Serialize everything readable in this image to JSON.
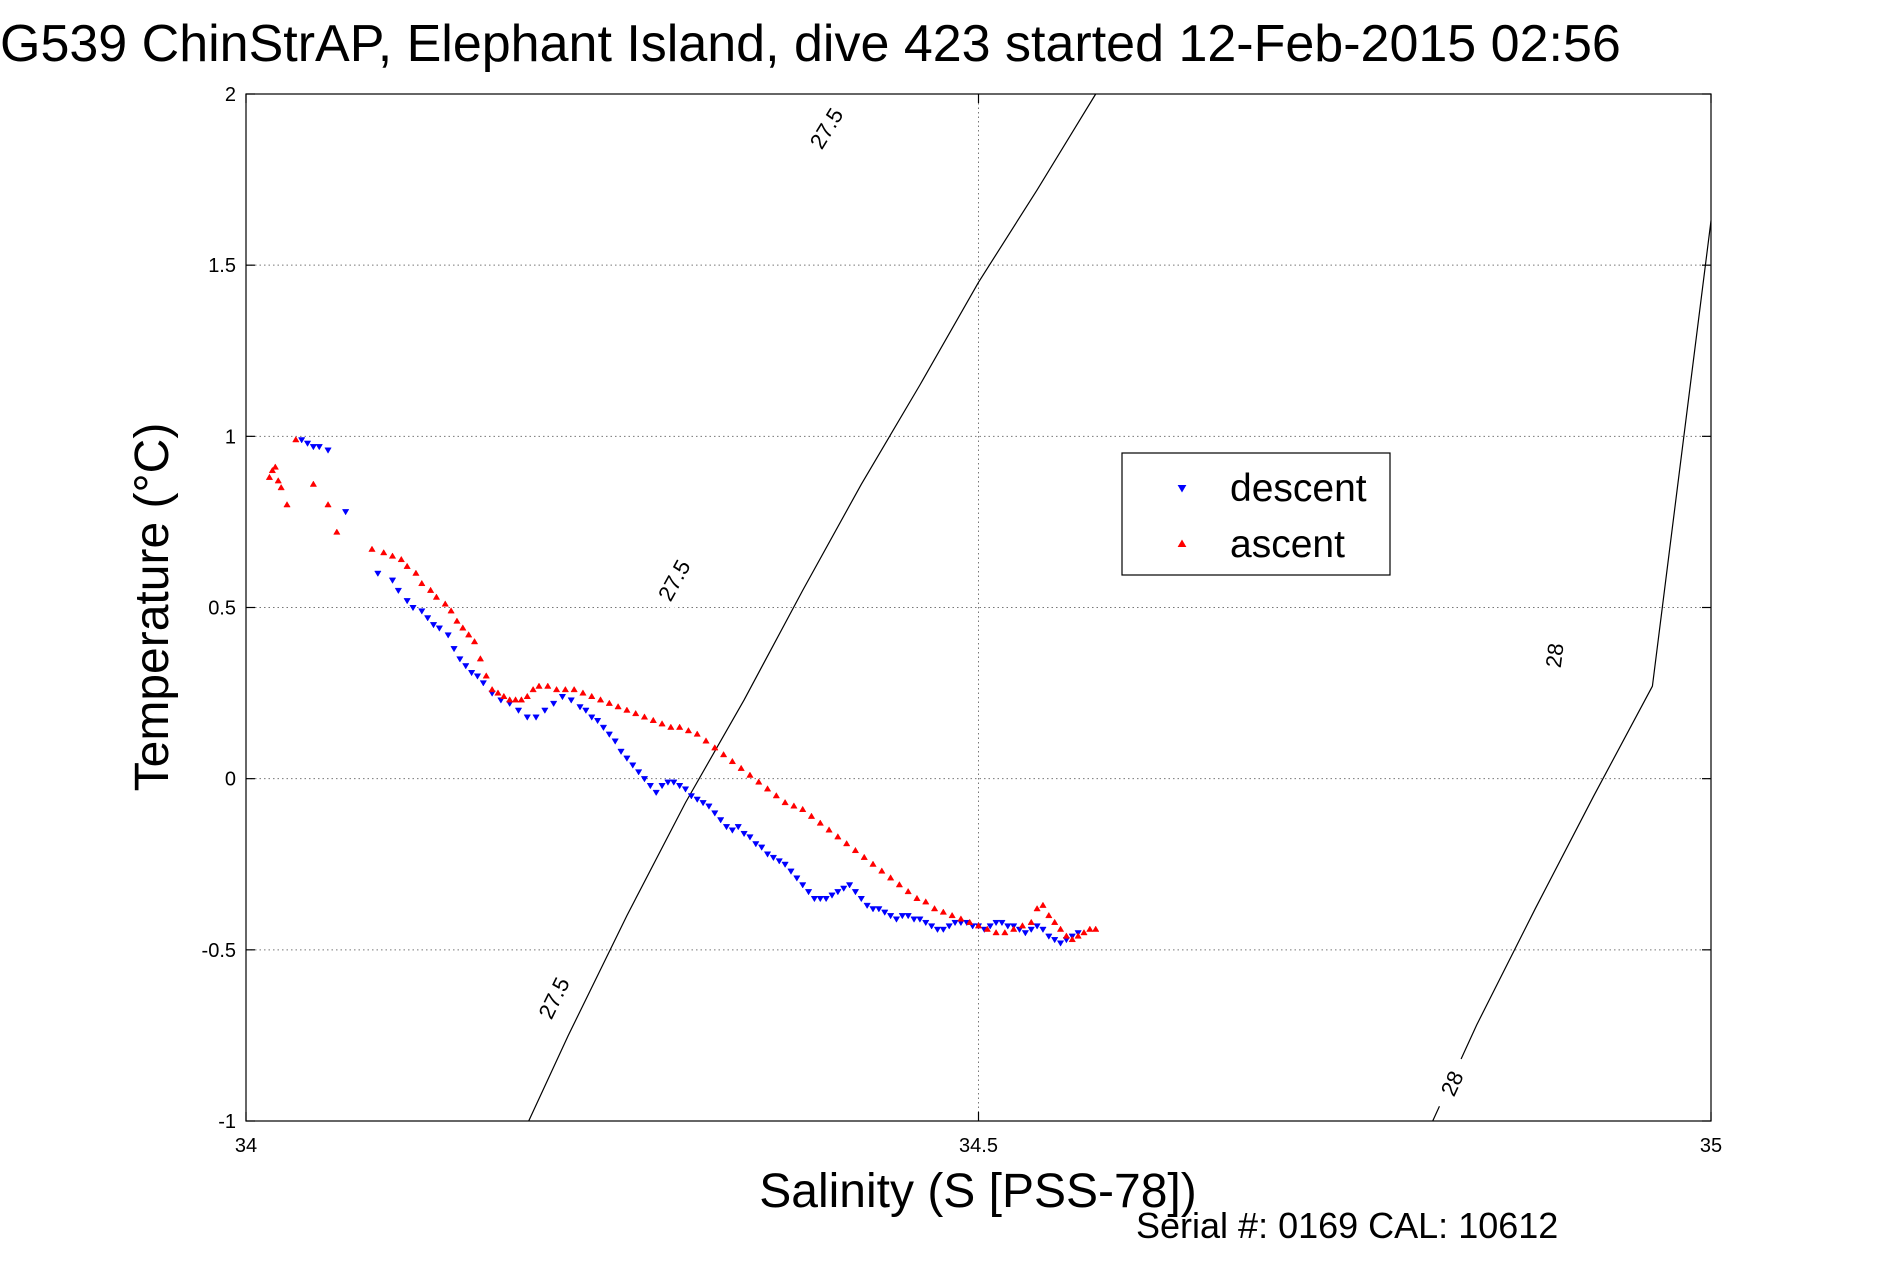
{
  "chart_data": {
    "type": "scatter",
    "title": "G539 ChinStrAP, Elephant Island, dive 423 started 12-Feb-2015 02:56",
    "xlabel": "Salinity (S [PSS-78])",
    "ylabel": "Temperature (°C)",
    "xlim": [
      34,
      35
    ],
    "ylim": [
      -1,
      2
    ],
    "xticks": [
      34,
      34.5,
      35
    ],
    "xtick_labels": [
      "34",
      "34.5",
      "35"
    ],
    "yticks": [
      -1,
      -0.5,
      0,
      0.5,
      1,
      1.5,
      2
    ],
    "ytick_labels": [
      "-1",
      "-0.5",
      "0",
      "0.5",
      "1",
      "1.5",
      "2"
    ],
    "grid": true,
    "grid_style": "dotted",
    "legend_position": "upper-right-center",
    "footer": "Serial #: 0169 CAL: 10612",
    "density_contours": [
      {
        "label": "27.5",
        "points": [
          [
            34.193,
            -1.0
          ],
          [
            34.22,
            -0.75
          ],
          [
            34.26,
            -0.4
          ],
          [
            34.3,
            -0.07
          ],
          [
            34.34,
            0.23
          ],
          [
            34.38,
            0.55
          ],
          [
            34.42,
            0.86
          ],
          [
            34.46,
            1.15
          ],
          [
            34.5,
            1.45
          ],
          [
            34.54,
            1.72
          ],
          [
            34.58,
            2.0
          ]
        ],
        "label_positions": [
          [
            34.21,
            -0.64
          ],
          [
            34.292,
            0.58
          ],
          [
            34.396,
            1.9
          ]
        ]
      },
      {
        "label": "28",
        "points": [
          [
            34.81,
            -1.0
          ],
          [
            34.84,
            -0.72
          ],
          [
            34.88,
            -0.38
          ],
          [
            34.92,
            -0.05
          ],
          [
            34.96,
            0.27
          ],
          [
            35.0,
            1.63
          ]
        ],
        "label_positions": [
          [
            34.823,
            -0.89
          ],
          [
            34.893,
            0.36
          ]
        ]
      }
    ],
    "series": [
      {
        "name": "descent",
        "color": "#0000ff",
        "marker": "triangle-down",
        "x": [
          34.038,
          34.042,
          34.046,
          34.05,
          34.056,
          34.068,
          34.09,
          34.1,
          34.104,
          34.11,
          34.114,
          34.12,
          34.124,
          34.128,
          34.132,
          34.138,
          34.142,
          34.146,
          34.15,
          34.154,
          34.158,
          34.162,
          34.168,
          34.174,
          34.18,
          34.186,
          34.192,
          34.198,
          34.204,
          34.21,
          34.216,
          34.222,
          34.228,
          34.232,
          34.236,
          34.24,
          34.244,
          34.248,
          34.252,
          34.256,
          34.26,
          34.264,
          34.268,
          34.272,
          34.276,
          34.28,
          34.284,
          34.288,
          34.292,
          34.296,
          34.3,
          34.304,
          34.308,
          34.312,
          34.316,
          34.32,
          34.324,
          34.328,
          34.332,
          34.336,
          34.34,
          34.344,
          34.348,
          34.352,
          34.356,
          34.36,
          34.364,
          34.368,
          34.372,
          34.376,
          34.38,
          34.384,
          34.388,
          34.392,
          34.396,
          34.4,
          34.404,
          34.408,
          34.412,
          34.416,
          34.42,
          34.424,
          34.428,
          34.432,
          34.436,
          34.44,
          34.444,
          34.448,
          34.452,
          34.456,
          34.46,
          34.464,
          34.468,
          34.472,
          34.476,
          34.48,
          34.484,
          34.488,
          34.492,
          34.496,
          34.5,
          34.504,
          34.508,
          34.512,
          34.516,
          34.52,
          34.524,
          34.528,
          34.532,
          34.536,
          34.54,
          34.544,
          34.548,
          34.552,
          34.556,
          34.56,
          34.564,
          34.568
        ],
        "y": [
          0.99,
          0.98,
          0.97,
          0.97,
          0.96,
          0.78,
          0.6,
          0.58,
          0.55,
          0.52,
          0.5,
          0.49,
          0.47,
          0.45,
          0.44,
          0.42,
          0.38,
          0.35,
          0.33,
          0.31,
          0.3,
          0.28,
          0.25,
          0.23,
          0.22,
          0.2,
          0.18,
          0.18,
          0.2,
          0.22,
          0.24,
          0.23,
          0.21,
          0.2,
          0.18,
          0.17,
          0.15,
          0.13,
          0.11,
          0.08,
          0.06,
          0.04,
          0.02,
          0.0,
          -0.02,
          -0.04,
          -0.02,
          -0.01,
          -0.01,
          -0.02,
          -0.03,
          -0.05,
          -0.06,
          -0.07,
          -0.08,
          -0.1,
          -0.12,
          -0.14,
          -0.15,
          -0.14,
          -0.16,
          -0.17,
          -0.19,
          -0.2,
          -0.22,
          -0.23,
          -0.24,
          -0.25,
          -0.27,
          -0.29,
          -0.31,
          -0.33,
          -0.35,
          -0.35,
          -0.35,
          -0.34,
          -0.33,
          -0.32,
          -0.31,
          -0.33,
          -0.35,
          -0.37,
          -0.38,
          -0.38,
          -0.39,
          -0.4,
          -0.41,
          -0.4,
          -0.4,
          -0.41,
          -0.41,
          -0.42,
          -0.43,
          -0.44,
          -0.44,
          -0.43,
          -0.42,
          -0.42,
          -0.42,
          -0.43,
          -0.43,
          -0.44,
          -0.43,
          -0.42,
          -0.42,
          -0.43,
          -0.43,
          -0.44,
          -0.45,
          -0.44,
          -0.43,
          -0.44,
          -0.46,
          -0.47,
          -0.48,
          -0.47,
          -0.46,
          -0.45
        ]
      },
      {
        "name": "ascent",
        "color": "#ff0000",
        "marker": "triangle-up",
        "x": [
          34.016,
          34.018,
          34.02,
          34.022,
          34.024,
          34.028,
          34.034,
          34.046,
          34.056,
          34.062,
          34.086,
          34.094,
          34.1,
          34.106,
          34.11,
          34.116,
          34.12,
          34.126,
          34.13,
          34.136,
          34.14,
          34.144,
          34.148,
          34.152,
          34.156,
          34.16,
          34.164,
          34.168,
          34.172,
          34.176,
          34.18,
          34.184,
          34.188,
          34.192,
          34.196,
          34.2,
          34.206,
          34.212,
          34.218,
          34.224,
          34.23,
          34.236,
          34.242,
          34.248,
          34.254,
          34.26,
          34.266,
          34.272,
          34.278,
          34.284,
          34.29,
          34.296,
          34.302,
          34.308,
          34.314,
          34.32,
          34.326,
          34.332,
          34.338,
          34.344,
          34.35,
          34.356,
          34.362,
          34.368,
          34.374,
          34.38,
          34.386,
          34.392,
          34.398,
          34.404,
          34.41,
          34.416,
          34.422,
          34.428,
          34.434,
          34.44,
          34.446,
          34.452,
          34.458,
          34.464,
          34.47,
          34.476,
          34.482,
          34.488,
          34.494,
          34.5,
          34.506,
          34.512,
          34.518,
          34.524,
          34.53,
          34.536,
          34.54,
          34.544,
          34.548,
          34.552,
          34.556,
          34.56,
          34.564,
          34.568,
          34.572,
          34.576,
          34.58
        ],
        "y": [
          0.88,
          0.9,
          0.91,
          0.87,
          0.85,
          0.8,
          0.99,
          0.86,
          0.8,
          0.72,
          0.67,
          0.66,
          0.65,
          0.64,
          0.62,
          0.6,
          0.57,
          0.55,
          0.53,
          0.51,
          0.49,
          0.46,
          0.44,
          0.42,
          0.4,
          0.35,
          0.3,
          0.26,
          0.25,
          0.24,
          0.23,
          0.23,
          0.23,
          0.24,
          0.26,
          0.27,
          0.27,
          0.26,
          0.26,
          0.26,
          0.25,
          0.24,
          0.23,
          0.22,
          0.21,
          0.2,
          0.19,
          0.18,
          0.17,
          0.16,
          0.15,
          0.15,
          0.14,
          0.13,
          0.11,
          0.09,
          0.07,
          0.05,
          0.03,
          0.01,
          -0.01,
          -0.03,
          -0.05,
          -0.07,
          -0.08,
          -0.09,
          -0.11,
          -0.13,
          -0.15,
          -0.17,
          -0.19,
          -0.21,
          -0.23,
          -0.25,
          -0.27,
          -0.29,
          -0.31,
          -0.33,
          -0.35,
          -0.36,
          -0.38,
          -0.39,
          -0.4,
          -0.41,
          -0.42,
          -0.43,
          -0.44,
          -0.45,
          -0.45,
          -0.44,
          -0.43,
          -0.42,
          -0.38,
          -0.37,
          -0.4,
          -0.42,
          -0.44,
          -0.46,
          -0.47,
          -0.46,
          -0.45,
          -0.44,
          -0.44
        ]
      }
    ]
  }
}
